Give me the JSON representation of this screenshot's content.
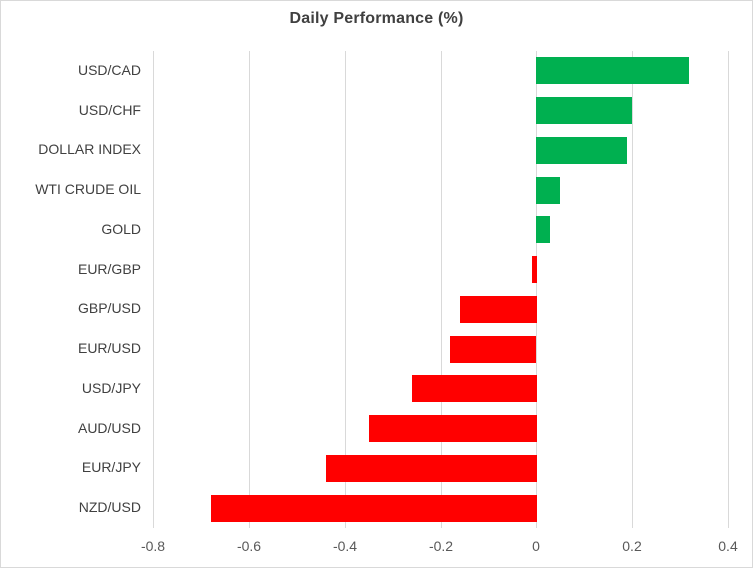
{
  "chart_data": {
    "type": "bar",
    "orientation": "horizontal",
    "title": "Daily Performance (%)",
    "categories": [
      "USD/CAD",
      "USD/CHF",
      "DOLLAR INDEX",
      "WTI CRUDE OIL",
      "GOLD",
      "EUR/GBP",
      "GBP/USD",
      "EUR/USD",
      "USD/JPY",
      "AUD/USD",
      "EUR/JPY",
      "NZD/USD"
    ],
    "values": [
      0.32,
      0.2,
      0.19,
      0.05,
      0.03,
      -0.01,
      -0.16,
      -0.18,
      -0.26,
      -0.35,
      -0.44,
      -0.68
    ],
    "xlabel": "",
    "ylabel": "",
    "xlim": [
      -0.8,
      0.4
    ],
    "xticks": [
      -0.8,
      -0.6,
      -0.4,
      -0.2,
      0,
      0.2,
      0.4
    ],
    "xtick_labels": [
      "-0.8",
      "-0.6",
      "-0.4",
      "-0.2",
      "0",
      "0.2",
      "0.4"
    ],
    "grid": "vertical-only",
    "legend": "none",
    "colors": {
      "positive": "#00B050",
      "negative": "#FF0000",
      "gridline": "#D9D9D9",
      "title_text": "#404040",
      "category_text": "#404040",
      "tick_text": "#595959",
      "border": "#D9D9D9",
      "background": "#FFFFFF"
    }
  }
}
